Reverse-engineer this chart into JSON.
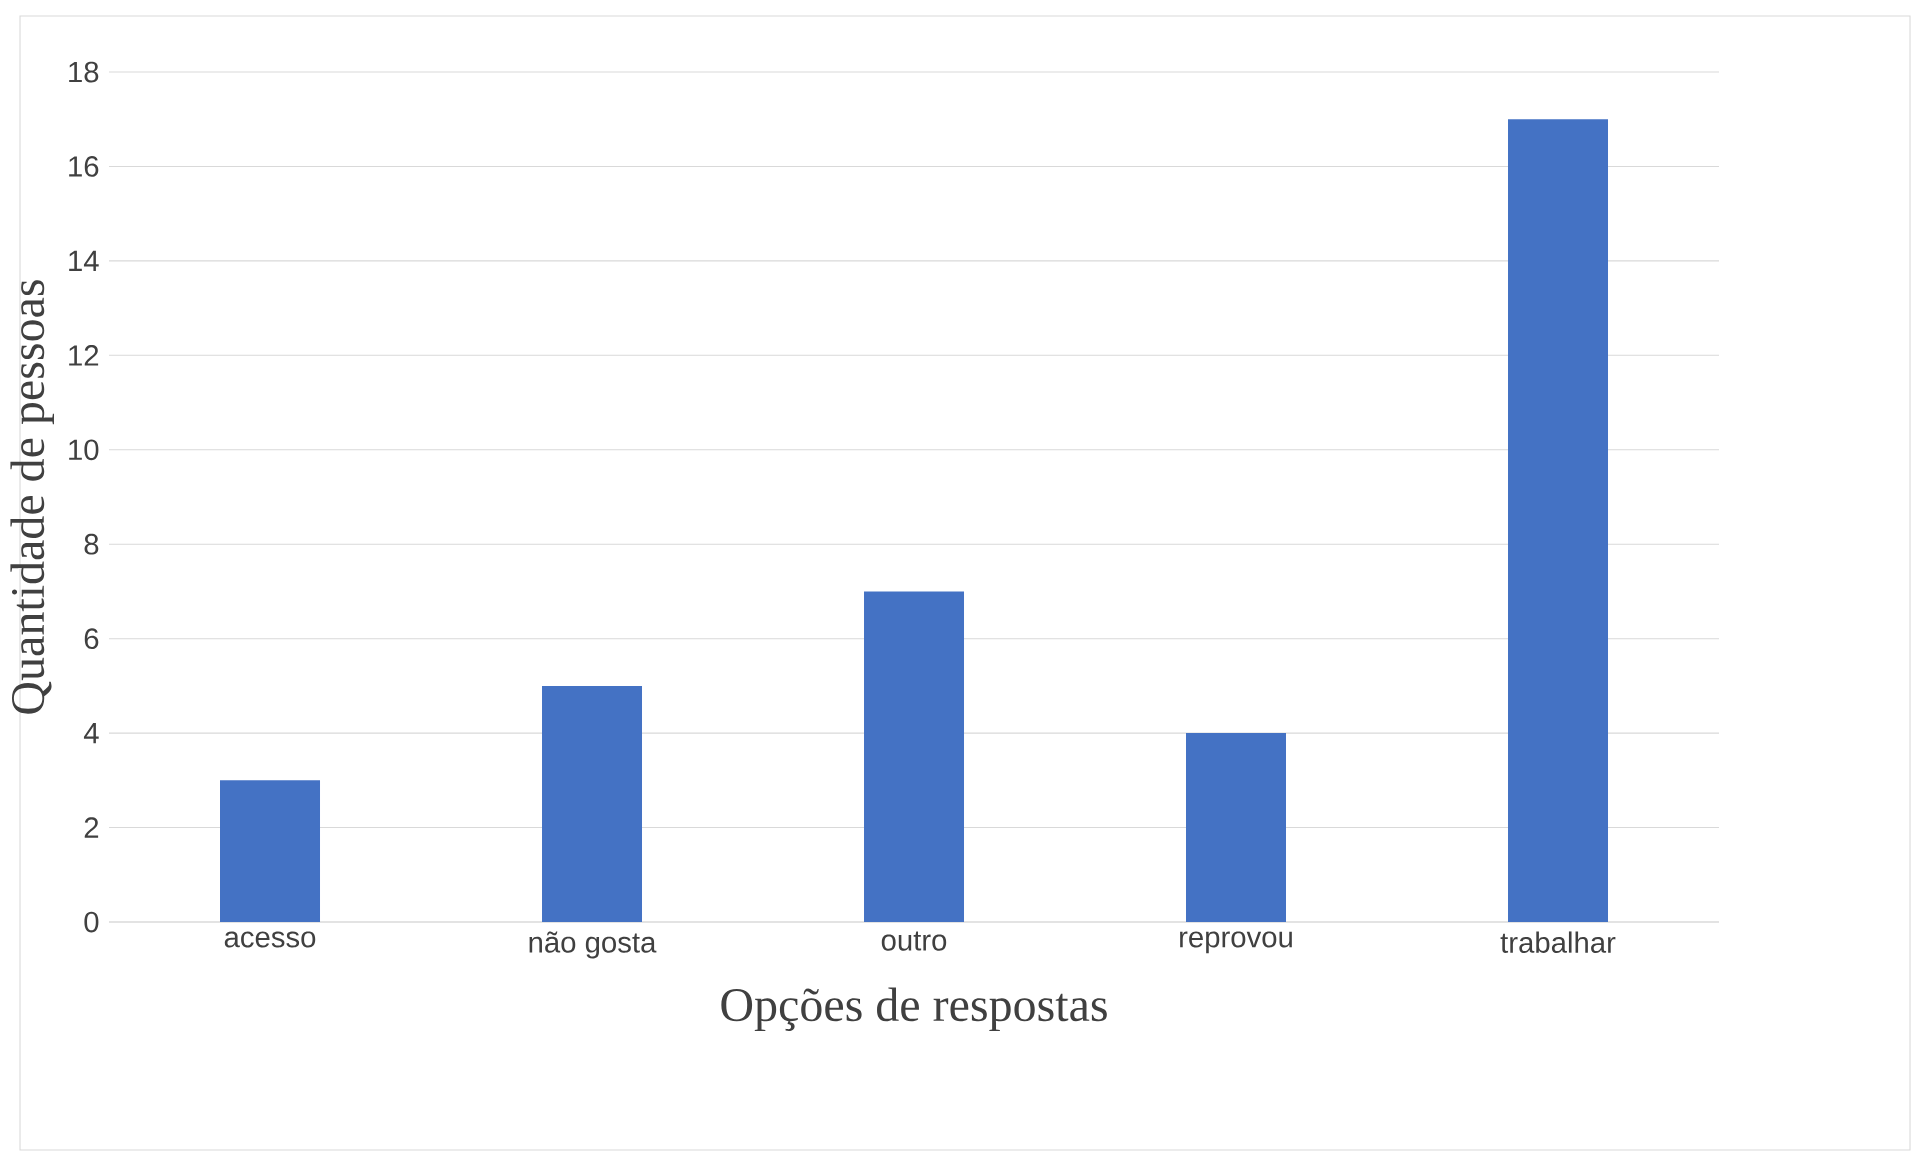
{
  "chart_data": {
    "type": "bar",
    "xlabel": "Opções de respostas",
    "ylabel": "Quantidade de pessoas",
    "categories": [
      "acesso",
      "não gosta",
      "outro",
      "reprovou",
      "trabalhar"
    ],
    "values": [
      3,
      5,
      7,
      4,
      17
    ],
    "color": "#4472c4",
    "ylim": [
      0,
      18
    ],
    "yticks": [
      0,
      2,
      4,
      6,
      8,
      10,
      12,
      14,
      16,
      18
    ],
    "grid": "y"
  }
}
